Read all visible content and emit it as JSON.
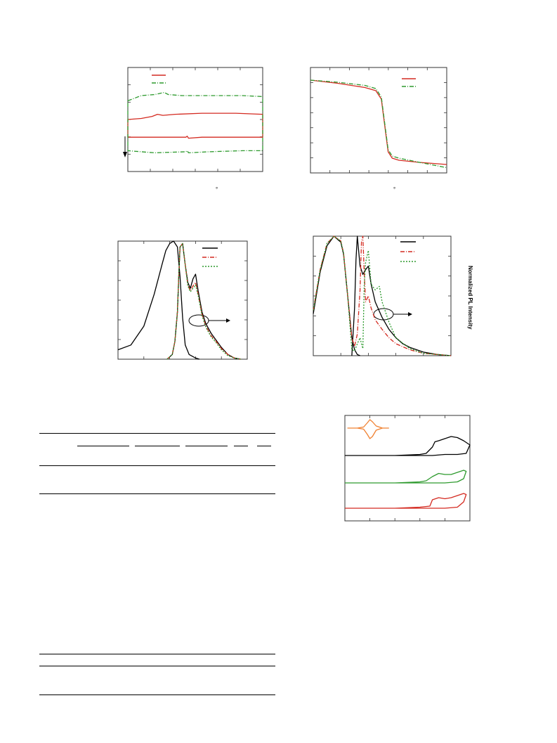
{
  "colors": {
    "red": "#d42a20",
    "green": "#2e9a2e",
    "black": "#000000",
    "orange": "#f08030",
    "axis": "#333333"
  },
  "figure_dsc": {
    "degree_mark": "°"
  },
  "figure_tga": {
    "degree_mark": "°"
  },
  "figure_pl_right": {
    "y2_label": "Normalized PL Intensity"
  },
  "chart_data": [
    {
      "type": "line",
      "panel": "dsc",
      "title": "",
      "xlabel": "",
      "ylabel": "",
      "xlim": [
        0,
        100
      ],
      "ylim": [
        0,
        100
      ],
      "series": [
        {
          "name": "",
          "color": "red",
          "style": "solid",
          "x": [
            0,
            10,
            18,
            22,
            26,
            35,
            55,
            80,
            100,
            100,
            80,
            55,
            45,
            44,
            43,
            20,
            0,
            0
          ],
          "y": [
            50,
            51,
            53,
            55,
            54,
            55,
            56,
            56,
            55,
            33,
            33,
            33,
            32,
            34,
            33,
            33,
            33,
            50
          ]
        },
        {
          "name": "",
          "color": "green",
          "style": "dashdot",
          "x": [
            0,
            10,
            20,
            27,
            30,
            40,
            60,
            85,
            100,
            100,
            85,
            60,
            45,
            44,
            43,
            20,
            0,
            0
          ],
          "y": [
            68,
            73,
            74,
            76,
            74,
            73,
            73,
            73,
            72,
            20,
            20,
            19,
            18,
            20,
            19,
            18,
            20,
            68
          ]
        }
      ]
    },
    {
      "type": "line",
      "panel": "tga",
      "title": "",
      "xlabel": "",
      "ylabel": "",
      "xlim": [
        0,
        100
      ],
      "ylim": [
        0,
        100
      ],
      "series": [
        {
          "name": "",
          "color": "red",
          "style": "solid",
          "x": [
            0,
            20,
            40,
            48,
            52,
            55,
            57,
            60,
            65,
            80,
            100
          ],
          "y": [
            88,
            85,
            81,
            78,
            70,
            40,
            20,
            14,
            12,
            10,
            8
          ]
        },
        {
          "name": "",
          "color": "green",
          "style": "dashdot",
          "x": [
            0,
            20,
            40,
            48,
            52,
            55,
            57,
            60,
            65,
            80,
            100
          ],
          "y": [
            88,
            86,
            83,
            80,
            72,
            42,
            22,
            16,
            14,
            10,
            5
          ]
        }
      ]
    },
    {
      "type": "line",
      "panel": "abs_pl_left",
      "title": "",
      "xlabel": "",
      "ylabel": "",
      "xlim": [
        0,
        100
      ],
      "ylim": [
        0,
        100
      ],
      "series": [
        {
          "name": "",
          "color": "black",
          "style": "solid",
          "x": [
            0,
            10,
            20,
            28,
            34,
            37,
            40,
            43,
            46,
            48,
            50,
            52,
            55,
            60,
            63
          ],
          "y": [
            8,
            12,
            28,
            55,
            80,
            92,
            98,
            100,
            95,
            70,
            35,
            12,
            4,
            1,
            0
          ]
        },
        {
          "name": "",
          "color": "black",
          "style": "solid",
          "x": [
            38,
            42,
            44,
            46,
            47,
            48,
            50,
            52,
            54,
            56,
            58,
            60,
            62,
            65,
            68,
            72,
            76,
            80,
            85,
            90,
            95
          ],
          "y": [
            0,
            4,
            15,
            40,
            70,
            95,
            98,
            80,
            65,
            60,
            68,
            72,
            58,
            40,
            30,
            22,
            16,
            10,
            4,
            1,
            0
          ]
        },
        {
          "name": "",
          "color": "red",
          "style": "dashdot",
          "x": [
            38,
            42,
            44,
            46,
            47,
            48,
            50,
            52,
            54,
            56,
            58,
            60,
            62,
            65,
            68,
            72,
            76,
            80,
            85,
            90,
            95
          ],
          "y": [
            0,
            4,
            15,
            40,
            70,
            95,
            98,
            80,
            63,
            58,
            62,
            65,
            55,
            38,
            28,
            20,
            15,
            9,
            4,
            1,
            0
          ]
        },
        {
          "name": "",
          "color": "green",
          "style": "dotted",
          "x": [
            38,
            42,
            44,
            46,
            47,
            48,
            50,
            52,
            54,
            56,
            58,
            60,
            62,
            65,
            68,
            72,
            76,
            80,
            85,
            90,
            95
          ],
          "y": [
            0,
            4,
            15,
            40,
            70,
            95,
            98,
            80,
            62,
            57,
            60,
            63,
            54,
            37,
            27,
            19,
            14,
            8,
            3,
            1,
            0
          ]
        }
      ]
    },
    {
      "type": "line",
      "panel": "abs_pl_right",
      "title": "",
      "xlabel": "",
      "ylabel": "",
      "xlim": [
        0,
        100
      ],
      "ylim": [
        0,
        100
      ],
      "series": [
        {
          "name": "",
          "color": "black",
          "style": "solid",
          "x": [
            0,
            5,
            10,
            15,
            20,
            22,
            25,
            28,
            30,
            32,
            34
          ],
          "y": [
            35,
            70,
            92,
            100,
            95,
            85,
            50,
            15,
            5,
            1,
            0
          ]
        },
        {
          "name": "",
          "color": "black",
          "style": "solid",
          "x": [
            28,
            30,
            31,
            32,
            34,
            36,
            38,
            40,
            42,
            45,
            50,
            55,
            60,
            65,
            70,
            80,
            90,
            100
          ],
          "y": [
            0,
            40,
            80,
            100,
            75,
            68,
            72,
            75,
            60,
            45,
            32,
            22,
            15,
            10,
            7,
            3,
            1,
            0
          ]
        },
        {
          "name": "",
          "color": "red",
          "style": "dashdot",
          "x": [
            0,
            5,
            10,
            15,
            20,
            22,
            25,
            28,
            30,
            32,
            34,
            35,
            36,
            37,
            38,
            40,
            42,
            45,
            50,
            55,
            60,
            70,
            80,
            90,
            100
          ],
          "y": [
            38,
            72,
            94,
            100,
            96,
            86,
            50,
            15,
            8,
            18,
            55,
            95,
            100,
            70,
            45,
            50,
            40,
            30,
            22,
            15,
            10,
            5,
            2,
            1,
            0
          ]
        },
        {
          "name": "",
          "color": "green",
          "style": "dotted",
          "x": [
            0,
            5,
            10,
            15,
            20,
            22,
            25,
            28,
            30,
            32,
            34,
            35,
            36,
            37,
            38,
            40,
            42,
            45,
            48,
            50,
            55,
            60,
            70,
            80,
            90,
            100
          ],
          "y": [
            38,
            72,
            94,
            100,
            96,
            86,
            50,
            5,
            4,
            10,
            15,
            10,
            6,
            58,
            78,
            88,
            60,
            55,
            58,
            45,
            28,
            15,
            6,
            2,
            1,
            0
          ]
        }
      ]
    },
    {
      "type": "line",
      "panel": "cv",
      "title": "",
      "xlabel": "",
      "ylabel": "",
      "xlim": [
        0,
        100
      ],
      "ylim": [
        0,
        100
      ],
      "series": [
        {
          "name": "",
          "color": "orange",
          "style": "solid",
          "x": [
            2,
            10,
            15,
            18,
            20,
            22,
            25,
            30,
            35,
            30,
            25,
            22,
            20,
            18,
            15,
            10,
            2
          ],
          "y": [
            88,
            88,
            89,
            93,
            96,
            94,
            90,
            88,
            88,
            88,
            86,
            80,
            78,
            82,
            87,
            88,
            88
          ]
        },
        {
          "name": "",
          "color": "black",
          "style": "solid",
          "x": [
            0,
            40,
            60,
            65,
            70,
            72,
            75,
            80,
            85,
            90,
            95,
            100,
            97,
            90,
            80,
            70,
            60,
            40,
            0
          ],
          "y": [
            62,
            62,
            63,
            64,
            70,
            75,
            76,
            78,
            80,
            79,
            76,
            72,
            64,
            63,
            63,
            62,
            62,
            62,
            62
          ]
        },
        {
          "name": "",
          "color": "green",
          "style": "solid",
          "x": [
            0,
            40,
            60,
            65,
            70,
            75,
            80,
            85,
            90,
            95,
            97,
            95,
            90,
            80,
            70,
            60,
            40,
            0
          ],
          "y": [
            36,
            36,
            37,
            38,
            42,
            45,
            44,
            44,
            46,
            48,
            47,
            40,
            37,
            36,
            36,
            36,
            36,
            36
          ]
        },
        {
          "name": "",
          "color": "red",
          "style": "solid",
          "x": [
            0,
            40,
            60,
            68,
            70,
            75,
            80,
            85,
            90,
            95,
            97,
            95,
            90,
            80,
            70,
            60,
            40,
            0
          ],
          "y": [
            12,
            12,
            13,
            14,
            20,
            22,
            21,
            22,
            24,
            26,
            25,
            18,
            13,
            12,
            12,
            12,
            12,
            12
          ]
        }
      ]
    }
  ]
}
